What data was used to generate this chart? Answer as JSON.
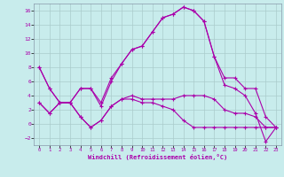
{
  "xlabel": "Windchill (Refroidissement éolien,°C)",
  "xlim": [
    -0.5,
    23.5
  ],
  "ylim": [
    -3,
    17
  ],
  "yticks": [
    -2,
    0,
    2,
    4,
    6,
    8,
    10,
    12,
    14,
    16
  ],
  "xticks": [
    0,
    1,
    2,
    3,
    4,
    5,
    6,
    7,
    8,
    9,
    10,
    11,
    12,
    13,
    14,
    15,
    16,
    17,
    18,
    19,
    20,
    21,
    22,
    23
  ],
  "bg_color": "#c8ecec",
  "line_color": "#aa00aa",
  "grid_color": "#aacccc",
  "line1_x": [
    0,
    1,
    2,
    3,
    4,
    5,
    6,
    7,
    8,
    9,
    10,
    11,
    12,
    13,
    14,
    15,
    16,
    17,
    18,
    19,
    20,
    21,
    22,
    23
  ],
  "line1_y": [
    8.0,
    5.0,
    3.0,
    3.0,
    5.0,
    5.0,
    3.0,
    6.5,
    8.5,
    10.5,
    11.0,
    13.0,
    15.0,
    15.5,
    16.5,
    16.0,
    14.5,
    9.5,
    6.5,
    6.5,
    5.0,
    5.0,
    1.0,
    -0.5
  ],
  "line2_x": [
    0,
    1,
    2,
    3,
    4,
    5,
    6,
    7,
    8,
    9,
    10,
    11,
    12,
    13,
    14,
    15,
    16,
    17,
    18,
    19,
    20,
    21,
    22,
    23
  ],
  "line2_y": [
    8.0,
    5.0,
    3.0,
    3.0,
    5.0,
    5.0,
    2.5,
    6.0,
    8.5,
    10.5,
    11.0,
    13.0,
    15.0,
    15.5,
    16.5,
    16.0,
    14.5,
    9.5,
    5.5,
    5.0,
    4.0,
    1.5,
    -2.5,
    -0.5
  ],
  "line3_x": [
    0,
    1,
    2,
    3,
    4,
    5,
    6,
    7,
    8,
    9,
    10,
    11,
    12,
    13,
    14,
    15,
    16,
    17,
    18,
    19,
    20,
    21,
    22,
    23
  ],
  "line3_y": [
    3.0,
    1.5,
    3.0,
    3.0,
    1.0,
    -0.5,
    0.5,
    2.5,
    3.5,
    4.0,
    3.5,
    3.5,
    3.5,
    3.5,
    4.0,
    4.0,
    4.0,
    3.5,
    2.0,
    1.5,
    1.5,
    1.0,
    -0.5,
    -0.5
  ],
  "line4_x": [
    0,
    1,
    2,
    3,
    4,
    5,
    6,
    7,
    8,
    9,
    10,
    11,
    12,
    13,
    14,
    15,
    16,
    17,
    18,
    19,
    20,
    21,
    22,
    23
  ],
  "line4_y": [
    3.0,
    1.5,
    3.0,
    3.0,
    1.0,
    -0.5,
    0.5,
    2.5,
    3.5,
    3.5,
    3.0,
    3.0,
    2.5,
    2.0,
    0.5,
    -0.5,
    -0.5,
    -0.5,
    -0.5,
    -0.5,
    -0.5,
    -0.5,
    -0.5,
    -0.5
  ]
}
